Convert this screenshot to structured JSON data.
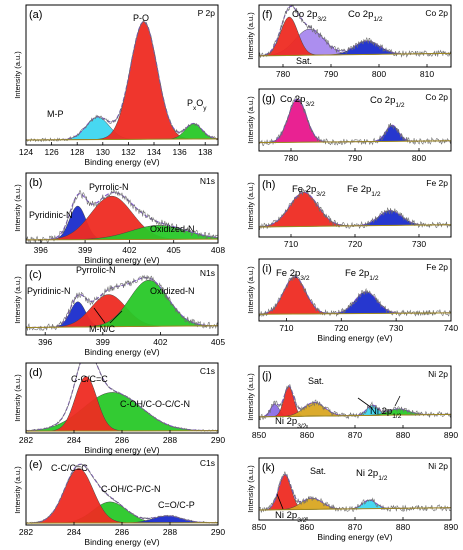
{
  "chart_data": [
    {
      "id": "a",
      "type": "area",
      "panel_label": "(a)",
      "corner_label": "P 2p",
      "xlabel": "Binding energy (eV)",
      "ylabel": "Intensity (a.u.)",
      "xlim": [
        124,
        139
      ],
      "ylim": [
        0,
        1.0
      ],
      "xticks": [
        "124",
        "126",
        "128",
        "130",
        "132",
        "134",
        "136",
        "138"
      ],
      "peaks": [
        {
          "name": "M-P",
          "center": 129.6,
          "height": 0.16,
          "width": 0.9,
          "color": "#3dd6f0"
        },
        {
          "name": "P-O",
          "center": 133.2,
          "height": 0.84,
          "width": 1.05,
          "color": "#ee2b22"
        },
        {
          "name": "PxOy",
          "center": 137.1,
          "height": 0.11,
          "width": 0.65,
          "color": "#28c828"
        }
      ],
      "baseline": 0.04
    },
    {
      "id": "b",
      "type": "area",
      "panel_label": "(b)",
      "corner_label": "N1s",
      "xlabel": "Binding energy (eV)",
      "ylabel": "Intensity (a.u.)",
      "xlim": [
        395,
        408
      ],
      "ylim": [
        0,
        1.0
      ],
      "xticks": [
        "396",
        "399",
        "402",
        "405",
        "408"
      ],
      "peaks": [
        {
          "name": "Pyridinic-N",
          "center": 398.5,
          "height": 0.48,
          "width": 0.55,
          "color": "#1a2ccc"
        },
        {
          "name": "Pyrrolic-N",
          "center": 400.8,
          "height": 0.62,
          "width": 1.4,
          "color": "#ee2b22"
        },
        {
          "name": "Oxidized-N",
          "center": 404.0,
          "height": 0.2,
          "width": 1.9,
          "color": "#28c828"
        }
      ],
      "baseline": 0.05
    },
    {
      "id": "c",
      "type": "area",
      "panel_label": "(c)",
      "corner_label": "N1s",
      "xlabel": "Binding energy (eV)",
      "ylabel": "Intensity (a.u.)",
      "xlim": [
        395,
        405
      ],
      "ylim": [
        0,
        1.0
      ],
      "xticks": [
        "396",
        "399",
        "402",
        "405"
      ],
      "peaks": [
        {
          "name": "Pyridinic-N",
          "center": 397.7,
          "height": 0.36,
          "width": 0.4,
          "color": "#1a2ccc"
        },
        {
          "name": "Pyrrolic-N",
          "center": 399.3,
          "height": 0.46,
          "width": 0.9,
          "color": "#ee2b22"
        },
        {
          "name": "Oxidized-N",
          "center": 401.4,
          "height": 0.66,
          "width": 1.0,
          "color": "#28c828"
        }
      ],
      "extra_labels": [
        "M-N/C"
      ],
      "baseline": 0.12
    },
    {
      "id": "d",
      "type": "area",
      "panel_label": "(d)",
      "corner_label": "C1s",
      "xlabel": "Binding energy (eV)",
      "ylabel": "Intensity (a.u.)",
      "xlim": [
        282,
        290
      ],
      "ylim": [
        0,
        1.0
      ],
      "xticks": [
        "282",
        "284",
        "286",
        "288",
        "290"
      ],
      "peaks": [
        {
          "name": "C-OH/C-O-C/C-N",
          "center": 285.6,
          "height": 0.55,
          "width": 1.2,
          "color": "#28c828"
        },
        {
          "name": "C-C/C=C",
          "center": 284.5,
          "height": 0.78,
          "width": 0.45,
          "color": "#ee2b22"
        }
      ],
      "baseline": 0.03
    },
    {
      "id": "e",
      "type": "area",
      "panel_label": "(e)",
      "corner_label": "C1s",
      "xlabel": "Binding energy (eV)",
      "ylabel": "Intensity (a.u.)",
      "xlim": [
        282,
        290
      ],
      "ylim": [
        0,
        1.0
      ],
      "xticks": [
        "282",
        "284",
        "286",
        "288",
        "290"
      ],
      "peaks": [
        {
          "name": "C-OH/C-P/C-N",
          "center": 285.5,
          "height": 0.3,
          "width": 0.7,
          "color": "#28c828"
        },
        {
          "name": "C=O/C-P",
          "center": 287.9,
          "height": 0.1,
          "width": 0.6,
          "color": "#1a2ccc"
        },
        {
          "name": "C-C/C=C",
          "center": 284.2,
          "height": 0.78,
          "width": 0.6,
          "color": "#ee2b22"
        }
      ],
      "baseline": 0.03
    },
    {
      "id": "f",
      "type": "area",
      "panel_label": "(f)",
      "corner_label": "Co 2p",
      "xlabel": "",
      "ylabel": "Intensity (a.u.)",
      "xlim": [
        775,
        815
      ],
      "ylim": [
        0,
        1.0
      ],
      "xticks": [
        "780",
        "790",
        "800",
        "810"
      ],
      "peaks": [
        {
          "name": "Sat.",
          "center": 785.5,
          "height": 0.42,
          "width": 3.0,
          "color": "#a888ee"
        },
        {
          "name": "Co 2p3/2",
          "center": 781.3,
          "height": 0.62,
          "width": 1.8,
          "color": "#ee2b22"
        },
        {
          "name": "Co 2p1/2",
          "center": 797.5,
          "height": 0.22,
          "width": 2.6,
          "color": "#1a2ccc"
        }
      ],
      "baseline": 0.2
    },
    {
      "id": "g",
      "type": "area",
      "panel_label": "(g)",
      "corner_label": "Co 2p",
      "xlabel": "",
      "ylabel": "Intensity (a.u.)",
      "xlim": [
        775,
        805
      ],
      "ylim": [
        0,
        1.0
      ],
      "xticks": [
        "780",
        "790",
        "800"
      ],
      "peaks": [
        {
          "name": "Co 2p3/2",
          "center": 781.0,
          "height": 0.7,
          "width": 1.4,
          "color": "#e8168c"
        },
        {
          "name": "Co 2p1/2",
          "center": 795.8,
          "height": 0.26,
          "width": 1.0,
          "color": "#1a2ccc"
        }
      ],
      "baseline": 0.15
    },
    {
      "id": "h",
      "type": "area",
      "panel_label": "(h)",
      "corner_label": "Fe 2p",
      "xlabel": "",
      "ylabel": "Intensity (a.u.)",
      "xlim": [
        705,
        735
      ],
      "ylim": [
        0,
        1.0
      ],
      "xticks": [
        "710",
        "720",
        "730"
      ],
      "peaks": [
        {
          "name": "Fe 2p3/2",
          "center": 712.0,
          "height": 0.55,
          "width": 2.2,
          "color": "#ee2b22"
        },
        {
          "name": "Fe 2p1/2",
          "center": 725.5,
          "height": 0.24,
          "width": 1.8,
          "color": "#1a2ccc"
        }
      ],
      "baseline": 0.18
    },
    {
      "id": "i",
      "type": "area",
      "panel_label": "(i)",
      "corner_label": "Fe 2p",
      "xlabel": "Binding energy (eV)",
      "ylabel": "Intensity (a.u.)",
      "xlim": [
        705,
        740
      ],
      "ylim": [
        0,
        1.0
      ],
      "xticks": [
        "710",
        "720",
        "730",
        "740"
      ],
      "peaks": [
        {
          "name": "Fe 2p3/2",
          "center": 711.5,
          "height": 0.6,
          "width": 2.0,
          "color": "#ee2b22"
        },
        {
          "name": "Fe 2p1/2",
          "center": 724.5,
          "height": 0.35,
          "width": 2.0,
          "color": "#1a2ccc"
        }
      ],
      "baseline": 0.12
    },
    {
      "id": "j",
      "type": "area",
      "panel_label": "(j)",
      "corner_label": "Ni 2p",
      "xlabel": "",
      "ylabel": "Intensity (a.u.)",
      "xlim": [
        850,
        890
      ],
      "ylim": [
        0,
        1.0
      ],
      "xticks": [
        "850",
        "860",
        "870",
        "880",
        "890"
      ],
      "peaks": [
        {
          "name": "Ni 2p3/2",
          "center": 853.3,
          "height": 0.2,
          "width": 0.9,
          "color": "#8c6ee6"
        },
        {
          "name": "Ni 2p3/2 main",
          "center": 856.2,
          "height": 0.48,
          "width": 1.0,
          "color": "#ee2b22"
        },
        {
          "name": "Sat.",
          "center": 861.5,
          "height": 0.22,
          "width": 2.2,
          "color": "#d9a621"
        },
        {
          "name": "Ni 2p1/2",
          "center": 873.6,
          "height": 0.16,
          "width": 1.2,
          "color": "#3dd6f0"
        },
        {
          "name": "Ni 2p1/2 sat",
          "center": 879.0,
          "height": 0.1,
          "width": 2.2,
          "color": "#28c828"
        }
      ],
      "baseline": 0.2
    },
    {
      "id": "k",
      "type": "area",
      "panel_label": "(k)",
      "corner_label": "Ni 2p",
      "xlabel": "Binding energy (eV)",
      "ylabel": "Intensity (a.u.)",
      "xlim": [
        850,
        890
      ],
      "ylim": [
        0,
        1.0
      ],
      "xticks": [
        "850",
        "860",
        "870",
        "880",
        "890"
      ],
      "peaks": [
        {
          "name": "Ni 2p3/2",
          "center": 855.4,
          "height": 0.56,
          "width": 1.3,
          "color": "#ee2b22"
        },
        {
          "name": "Sat.",
          "center": 861.0,
          "height": 0.18,
          "width": 2.2,
          "color": "#d9a621"
        },
        {
          "name": "Ni 2p1/2",
          "center": 873.0,
          "height": 0.14,
          "width": 1.4,
          "color": "#3dd6f0"
        }
      ],
      "baseline": 0.18
    }
  ],
  "annotations": {
    "a": {
      "mp": "M-P",
      "po": "P-O",
      "pxoy_main": "P",
      "pxoy_x": "x",
      "pxoy_o": "O",
      "pxoy_y": "y"
    },
    "b": {
      "pyridinic": "Pyridinic-N",
      "pyrrolic": "Pyrrolic-N",
      "oxidized": "Oxidized-N"
    },
    "c": {
      "pyridinic": "Pyridinic-N",
      "pyrrolic": "Pyrrolic-N",
      "oxidized": "Oxidized-N",
      "mnc": "M-N/C"
    },
    "d": {
      "cc": "C-C/C=C",
      "coh": "C-OH/C-O-C/C-N"
    },
    "e": {
      "cc": "C-C/C=C",
      "coh": "C-OH/C-P/C-N",
      "co": "C=O/C-P"
    },
    "f": {
      "co32": "Co 2p",
      "co32_sub": "3/2",
      "co12": "Co 2p",
      "co12_sub": "1/2",
      "sat": "Sat."
    },
    "g": {
      "co32": "Co 2p",
      "co32_sub": "3/2",
      "co12": "Co 2p",
      "co12_sub": "1/2"
    },
    "h": {
      "fe32": "Fe 2p",
      "fe32_sub": "3/2",
      "fe12": "Fe 2p",
      "fe12_sub": "1/2"
    },
    "i": {
      "fe32": "Fe 2p",
      "fe32_sub": "3/2",
      "fe12": "Fe 2p",
      "fe12_sub": "1/2"
    },
    "j": {
      "sat": "Sat.",
      "ni12": "Ni 2p",
      "ni12_sub": "1/2",
      "ni32": "Ni 2p",
      "ni32_sub": "3/2"
    },
    "k": {
      "sat": "Sat.",
      "ni12": "Ni 2p",
      "ni12_sub": "1/2",
      "ni32": "Ni 2p",
      "ni32_sub": "3/2"
    }
  }
}
